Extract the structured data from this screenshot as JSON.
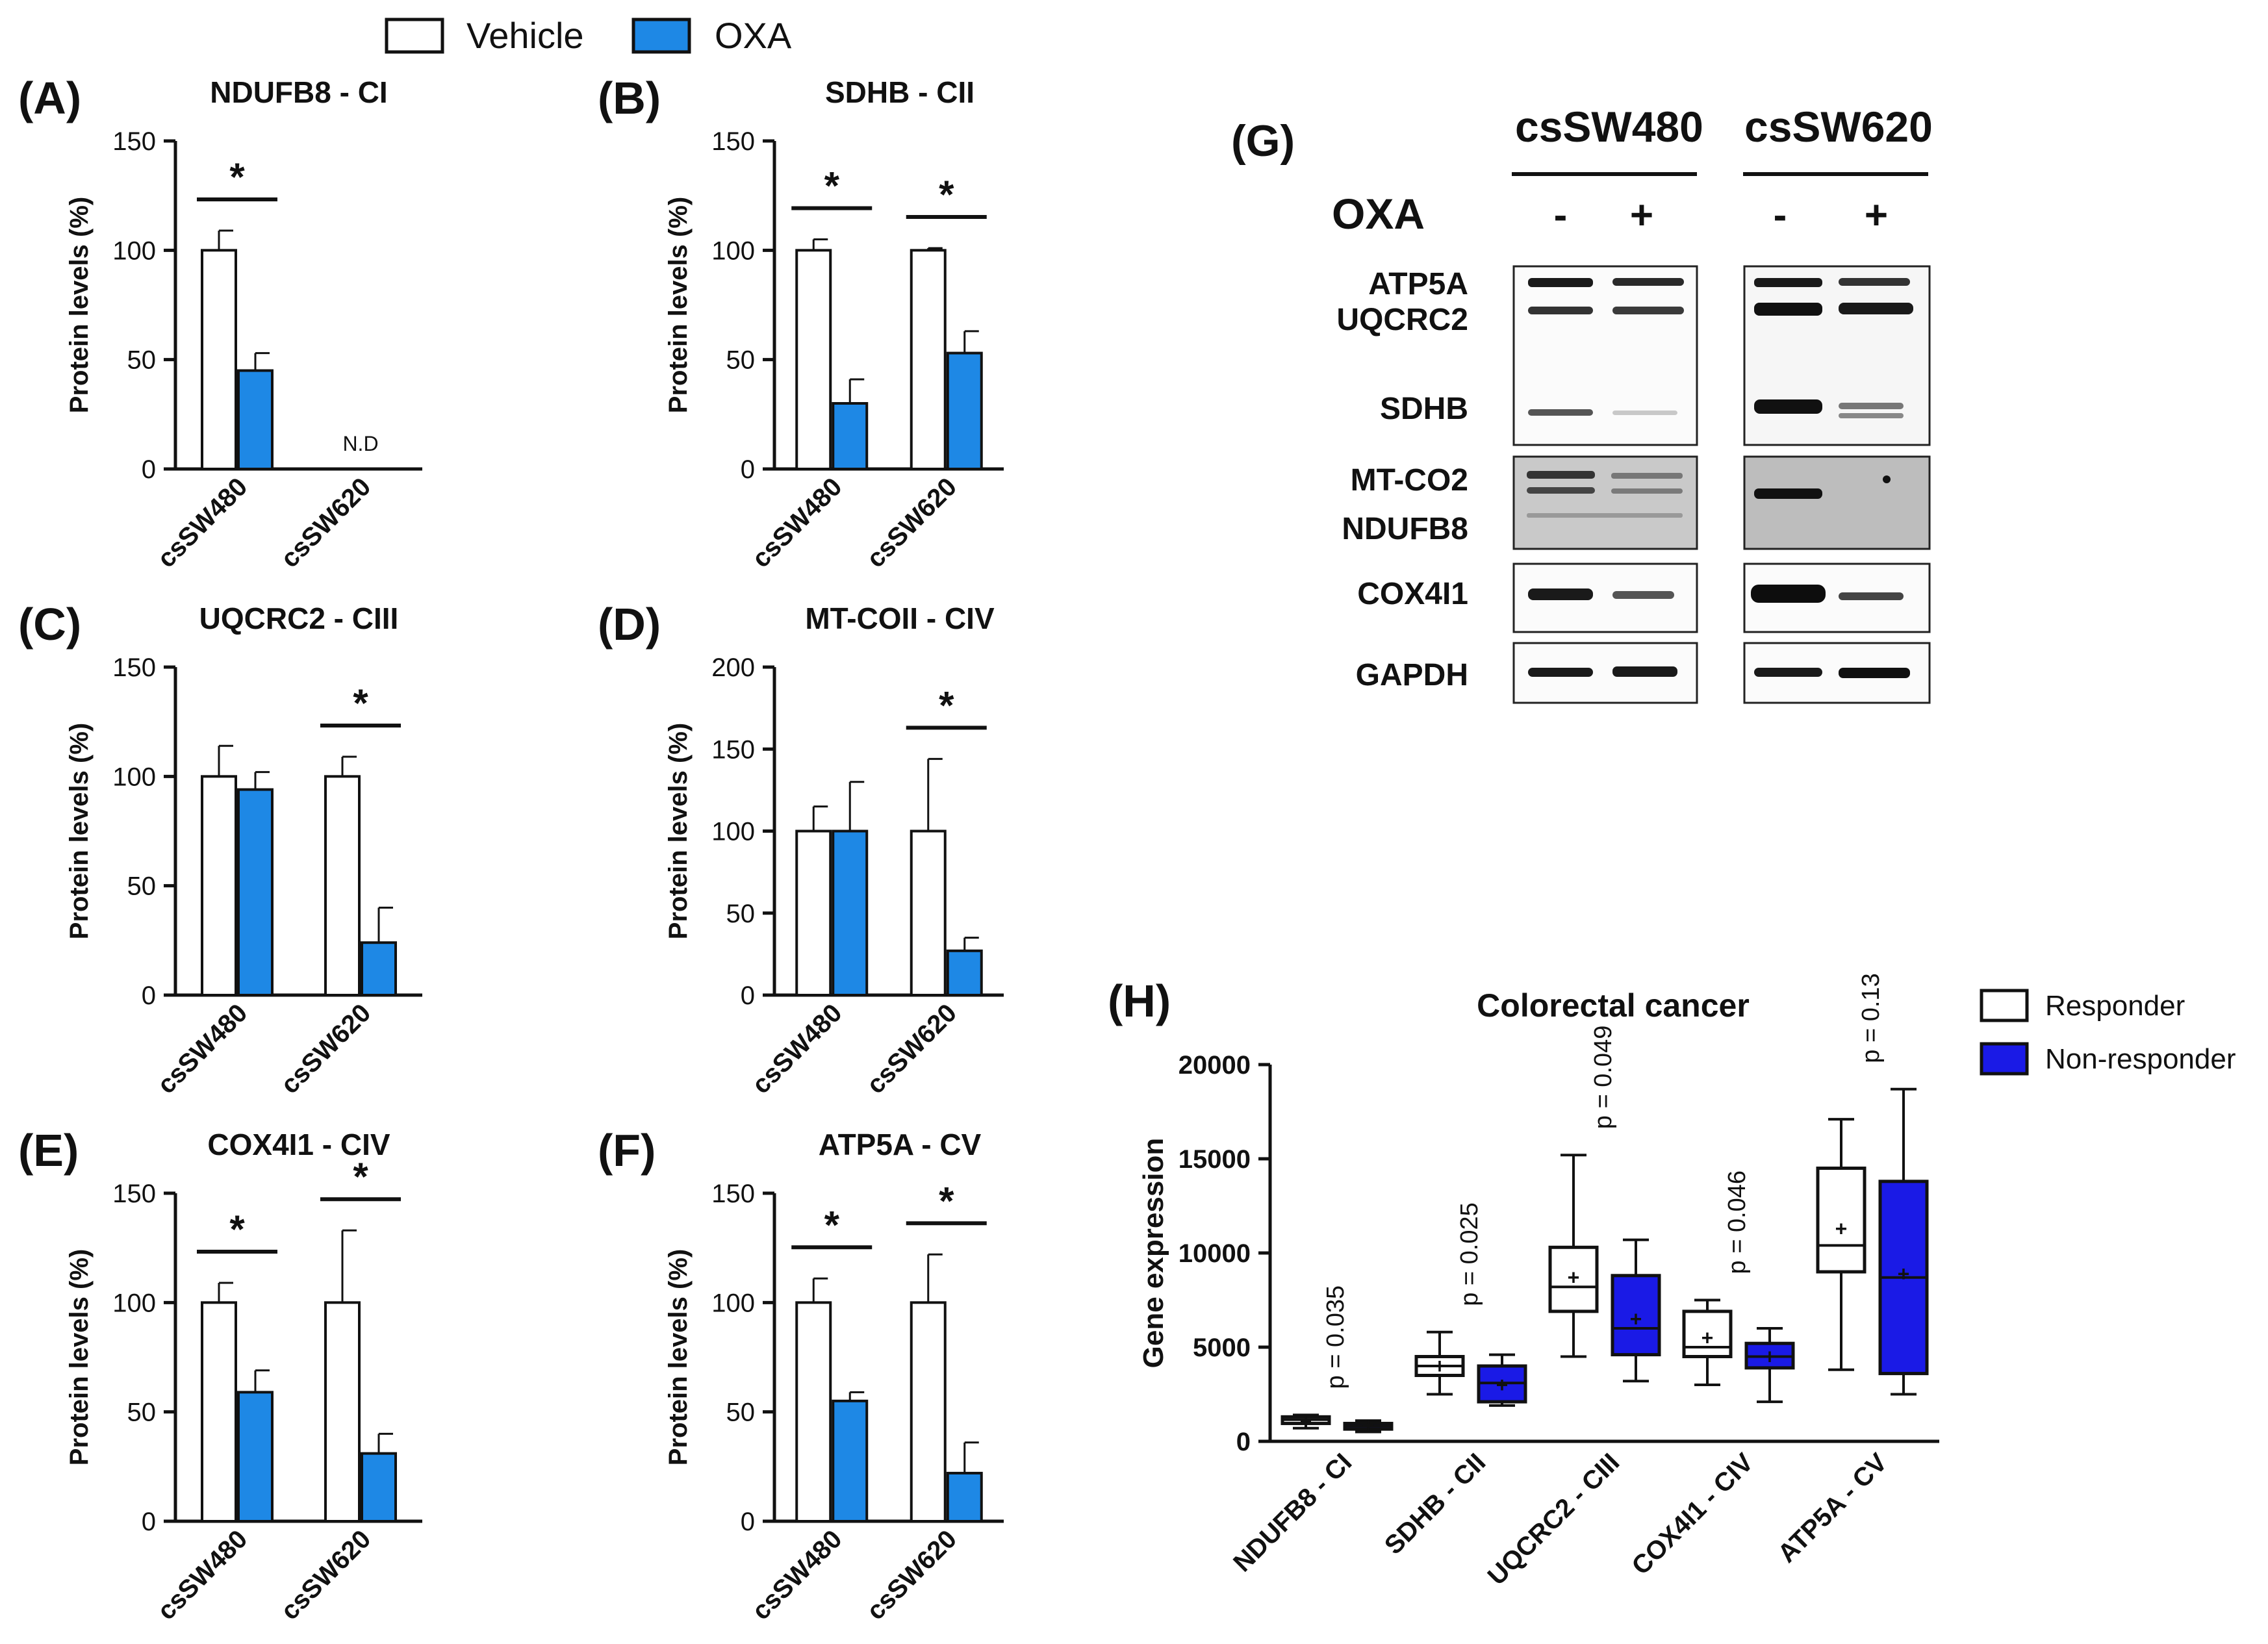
{
  "legend": {
    "items": [
      {
        "label": "Vehicle",
        "color": "#ffffff"
      },
      {
        "label": "OXA",
        "color": "#1e88e5"
      }
    ]
  },
  "chart_data": [
    {
      "id": "A",
      "panel_label": "(A)",
      "type": "bar",
      "title": "NDUFB8 - CI",
      "ylabel": "Protein levels (%)",
      "ylim": [
        0,
        150
      ],
      "yticks": [
        "0",
        "50",
        "100",
        "150"
      ],
      "categories": [
        "csSW480",
        "csSW620"
      ],
      "series": [
        {
          "name": "Vehicle",
          "values": [
            100,
            null
          ],
          "errors": [
            9,
            null
          ]
        },
        {
          "name": "OXA",
          "values": [
            45,
            null
          ],
          "errors": [
            8,
            null
          ]
        }
      ],
      "significance": [
        {
          "group": 0,
          "label": "*"
        }
      ],
      "annotations": [
        {
          "group": 1,
          "text": "N.D"
        }
      ]
    },
    {
      "id": "B",
      "panel_label": "(B)",
      "type": "bar",
      "title": "SDHB - CII",
      "ylabel": "Protein levels (%)",
      "ylim": [
        0,
        150
      ],
      "yticks": [
        "0",
        "50",
        "100",
        "150"
      ],
      "categories": [
        "csSW480",
        "csSW620"
      ],
      "series": [
        {
          "name": "Vehicle",
          "values": [
            100,
            100
          ],
          "errors": [
            5,
            1
          ]
        },
        {
          "name": "OXA",
          "values": [
            30,
            53
          ],
          "errors": [
            11,
            10
          ]
        }
      ],
      "significance": [
        {
          "group": 0,
          "label": "*"
        },
        {
          "group": 1,
          "label": "*"
        }
      ],
      "annotations": []
    },
    {
      "id": "C",
      "panel_label": "(C)",
      "type": "bar",
      "title": "UQCRC2 - CIII",
      "ylabel": "Protein levels (%)",
      "ylim": [
        0,
        150
      ],
      "yticks": [
        "0",
        "50",
        "100",
        "150"
      ],
      "categories": [
        "csSW480",
        "csSW620"
      ],
      "series": [
        {
          "name": "Vehicle",
          "values": [
            100,
            100
          ],
          "errors": [
            14,
            9
          ]
        },
        {
          "name": "OXA",
          "values": [
            94,
            24
          ],
          "errors": [
            8,
            16
          ]
        }
      ],
      "significance": [
        {
          "group": 1,
          "label": "*"
        }
      ],
      "annotations": []
    },
    {
      "id": "D",
      "panel_label": "(D)",
      "type": "bar",
      "title": "MT-COII - CIV",
      "ylabel": "Protein levels (%)",
      "ylim": [
        0,
        200
      ],
      "yticks": [
        "0",
        "50",
        "100",
        "150",
        "200"
      ],
      "categories": [
        "csSW480",
        "csSW620"
      ],
      "series": [
        {
          "name": "Vehicle",
          "values": [
            100,
            100
          ],
          "errors": [
            15,
            44
          ]
        },
        {
          "name": "OXA",
          "values": [
            100,
            27
          ],
          "errors": [
            30,
            8
          ]
        }
      ],
      "significance": [
        {
          "group": 1,
          "label": "*"
        }
      ],
      "annotations": []
    },
    {
      "id": "E",
      "panel_label": "(E)",
      "type": "bar",
      "title": "COX4I1 - CIV",
      "ylabel": "Protein levels (%)",
      "ylim": [
        0,
        150
      ],
      "yticks": [
        "0",
        "50",
        "100",
        "150"
      ],
      "categories": [
        "csSW480",
        "csSW620"
      ],
      "series": [
        {
          "name": "Vehicle",
          "values": [
            100,
            100
          ],
          "errors": [
            9,
            33
          ]
        },
        {
          "name": "OXA",
          "values": [
            59,
            31
          ],
          "errors": [
            10,
            9
          ]
        }
      ],
      "significance": [
        {
          "group": 0,
          "label": "*"
        },
        {
          "group": 1,
          "label": "*"
        }
      ],
      "annotations": []
    },
    {
      "id": "F",
      "panel_label": "(F)",
      "type": "bar",
      "title": "ATP5A - CV",
      "ylabel": "Protein levels (%)",
      "ylim": [
        0,
        150
      ],
      "yticks": [
        "0",
        "50",
        "100",
        "150"
      ],
      "categories": [
        "csSW480",
        "csSW620"
      ],
      "series": [
        {
          "name": "Vehicle",
          "values": [
            100,
            100
          ],
          "errors": [
            11,
            22
          ]
        },
        {
          "name": "OXA",
          "values": [
            55,
            22
          ],
          "errors": [
            4,
            14
          ]
        }
      ],
      "significance": [
        {
          "group": 0,
          "label": "*"
        },
        {
          "group": 1,
          "label": "*"
        }
      ],
      "annotations": []
    },
    {
      "id": "H",
      "panel_label": "(H)",
      "type": "box",
      "title": "Colorectal cancer",
      "ylabel": "Gene expression",
      "ylim": [
        0,
        20000
      ],
      "yticks": [
        "0",
        "5000",
        "10000",
        "15000",
        "20000"
      ],
      "categories": [
        "NDUFB8 - CI",
        "SDHB - CII",
        "UQCRC2 - CIII",
        "COX4I1 - CIV",
        "ATP5A - CV"
      ],
      "legend": [
        {
          "label": "Responder",
          "color": "#ffffff"
        },
        {
          "label": "Non-responder",
          "color": "#1a1ae6"
        }
      ],
      "pvalues": [
        "p = 0.035",
        "p = 0.025",
        "p = 0.049",
        "p = 0.046",
        "p = 0.13"
      ],
      "series": [
        {
          "name": "Responder",
          "boxes": [
            {
              "min": 700,
              "q1": 950,
              "median": 1150,
              "q3": 1300,
              "max": 1400,
              "mean": 1100
            },
            {
              "min": 2500,
              "q1": 3500,
              "median": 4000,
              "q3": 4500,
              "max": 5800,
              "mean": 4000
            },
            {
              "min": 4500,
              "q1": 6900,
              "median": 8200,
              "q3": 10300,
              "max": 15200,
              "mean": 8700
            },
            {
              "min": 3000,
              "q1": 4500,
              "median": 5000,
              "q3": 6900,
              "max": 7500,
              "mean": 5500
            },
            {
              "min": 3800,
              "q1": 9000,
              "median": 10400,
              "q3": 14500,
              "max": 17100,
              "mean": 11300
            }
          ]
        },
        {
          "name": "Non-responder",
          "boxes": [
            {
              "min": 500,
              "q1": 650,
              "median": 800,
              "q3": 950,
              "max": 1100,
              "mean": 850
            },
            {
              "min": 1900,
              "q1": 2100,
              "median": 3100,
              "q3": 4000,
              "max": 4600,
              "mean": 3000
            },
            {
              "min": 3200,
              "q1": 4600,
              "median": 6000,
              "q3": 8800,
              "max": 10700,
              "mean": 6500
            },
            {
              "min": 2100,
              "q1": 3900,
              "median": 4500,
              "q3": 5200,
              "max": 6000,
              "mean": 4500
            },
            {
              "min": 2500,
              "q1": 3600,
              "median": 8700,
              "q3": 13800,
              "max": 18700,
              "mean": 8900
            }
          ]
        }
      ]
    }
  ],
  "blot": {
    "panel_label": "(G)",
    "cell_lines": [
      "csSW480",
      "csSW620"
    ],
    "treatment_label": "OXA",
    "lanes": [
      "-",
      "+",
      "-",
      "+"
    ],
    "proteins": [
      "ATP5A",
      "UQCRC2",
      "SDHB",
      "MT-CO2",
      "NDUFB8",
      "COX4I1",
      "GAPDH"
    ]
  }
}
